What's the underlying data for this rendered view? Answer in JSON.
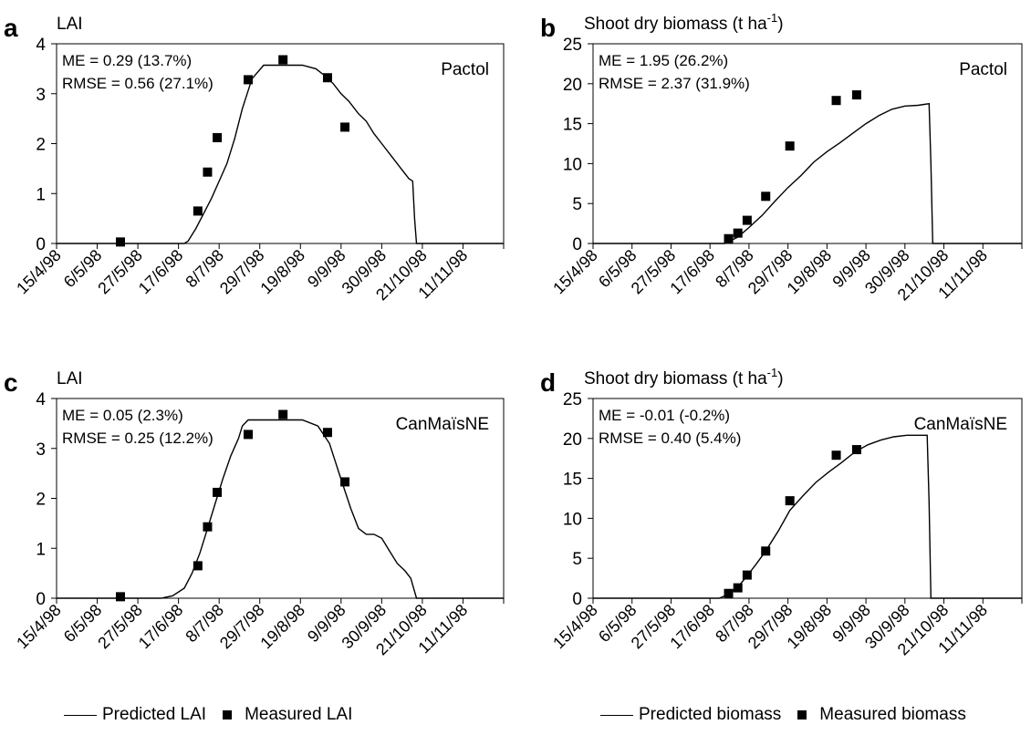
{
  "chart_data": [
    {
      "panel": "a",
      "type": "line",
      "title": "LAI",
      "model": "Pactol",
      "stats": [
        "ME = 0.29 (13.7%)",
        "RMSE = 0.56 (27.1%)"
      ],
      "ylim": [
        0,
        4
      ],
      "yticks": [
        0,
        1,
        2,
        3,
        4
      ],
      "xlim": [
        "1998-04-15",
        "1998-12-02"
      ],
      "xtick_labels": [
        "15/4/98",
        "6/5/98",
        "27/5/98",
        "17/6/98",
        "8/7/98",
        "29/7/98",
        "19/8/98",
        "9/9/98",
        "30/9/98",
        "21/10/98",
        "11/11/98"
      ],
      "series": [
        {
          "name": "Predicted LAI",
          "kind": "line",
          "x": [
            "1998-04-15",
            "1998-06-20",
            "1998-06-22",
            "1998-06-26",
            "1998-06-30",
            "1998-07-04",
            "1998-07-08",
            "1998-07-12",
            "1998-07-16",
            "1998-07-20",
            "1998-07-25",
            "1998-07-31",
            "1998-08-20",
            "1998-08-27",
            "1998-09-01",
            "1998-09-05",
            "1998-09-09",
            "1998-09-13",
            "1998-09-18",
            "1998-09-22",
            "1998-09-26",
            "1998-09-30",
            "1998-10-05",
            "1998-10-10",
            "1998-10-14",
            "1998-10-16",
            "1998-10-17",
            "1998-10-18",
            "1998-12-02"
          ],
          "y": [
            0,
            0,
            0.05,
            0.3,
            0.6,
            0.9,
            1.25,
            1.6,
            2.1,
            2.7,
            3.3,
            3.57,
            3.57,
            3.5,
            3.35,
            3.2,
            3.0,
            2.85,
            2.6,
            2.45,
            2.2,
            2.0,
            1.75,
            1.5,
            1.3,
            1.25,
            0.5,
            0,
            0
          ]
        },
        {
          "name": "Measured LAI",
          "kind": "scatter",
          "x": [
            "1998-05-18",
            "1998-06-27",
            "1998-07-02",
            "1998-07-07",
            "1998-07-23",
            "1998-08-10",
            "1998-09-02",
            "1998-09-11"
          ],
          "y": [
            0.03,
            0.65,
            1.43,
            2.12,
            3.28,
            3.68,
            3.32,
            2.33
          ]
        }
      ]
    },
    {
      "panel": "b",
      "type": "line",
      "title": "Shoot dry biomass (t ha",
      "title_sup": "-1",
      "title_end": ")",
      "model": "Pactol",
      "stats": [
        "ME = 1.95 (26.2%)",
        "RMSE = 2.37 (31.9%)"
      ],
      "ylim": [
        0,
        25
      ],
      "yticks": [
        0,
        5,
        10,
        15,
        20,
        25
      ],
      "xlim": [
        "1998-04-15",
        "1998-12-02"
      ],
      "xtick_labels": [
        "15/4/98",
        "6/5/98",
        "27/5/98",
        "17/6/98",
        "8/7/98",
        "29/7/98",
        "19/8/98",
        "9/9/98",
        "30/9/98",
        "21/10/98",
        "11/11/98"
      ],
      "series": [
        {
          "name": "Predicted biomass",
          "kind": "line",
          "x": [
            "1998-04-15",
            "1998-06-25",
            "1998-07-02",
            "1998-07-08",
            "1998-07-15",
            "1998-07-22",
            "1998-07-29",
            "1998-08-05",
            "1998-08-12",
            "1998-08-19",
            "1998-08-26",
            "1998-09-02",
            "1998-09-09",
            "1998-09-16",
            "1998-09-23",
            "1998-09-30",
            "1998-10-07",
            "1998-10-13",
            "1998-10-14",
            "1998-10-15",
            "1998-12-02"
          ],
          "y": [
            0,
            0,
            0.8,
            2.0,
            3.5,
            5.3,
            7.0,
            8.5,
            10.2,
            11.5,
            12.6,
            13.8,
            15.0,
            16.0,
            16.8,
            17.2,
            17.3,
            17.5,
            10,
            0,
            0
          ]
        },
        {
          "name": "Measured biomass",
          "kind": "scatter",
          "x": [
            "1998-06-27",
            "1998-07-02",
            "1998-07-07",
            "1998-07-17",
            "1998-07-30",
            "1998-08-24",
            "1998-09-04"
          ],
          "y": [
            0.6,
            1.3,
            2.9,
            5.9,
            12.2,
            17.9,
            18.6
          ]
        }
      ]
    },
    {
      "panel": "c",
      "type": "line",
      "title": "LAI",
      "model": "CanMaïsNE",
      "stats": [
        "ME = 0.05 (2.3%)",
        "RMSE = 0.25 (12.2%)"
      ],
      "ylim": [
        0,
        4
      ],
      "yticks": [
        0,
        1,
        2,
        3,
        4
      ],
      "xlim": [
        "1998-04-15",
        "1998-12-02"
      ],
      "xtick_labels": [
        "15/4/98",
        "6/5/98",
        "27/5/98",
        "17/6/98",
        "8/7/98",
        "29/7/98",
        "19/8/98",
        "9/9/98",
        "30/9/98",
        "21/10/98",
        "11/11/98"
      ],
      "series": [
        {
          "name": "Predicted LAI",
          "kind": "line",
          "x": [
            "1998-04-15",
            "1998-06-08",
            "1998-06-14",
            "1998-06-20",
            "1998-06-24",
            "1998-06-28",
            "1998-07-02",
            "1998-07-06",
            "1998-07-10",
            "1998-07-14",
            "1998-07-18",
            "1998-07-20",
            "1998-07-23",
            "1998-08-20",
            "1998-08-28",
            "1998-09-03",
            "1998-09-08",
            "1998-09-14",
            "1998-09-18",
            "1998-09-22",
            "1998-09-26",
            "1998-09-30",
            "1998-10-04",
            "1998-10-08",
            "1998-10-12",
            "1998-10-15",
            "1998-10-18",
            "1998-12-02"
          ],
          "y": [
            0,
            0,
            0.05,
            0.2,
            0.5,
            0.9,
            1.4,
            1.9,
            2.4,
            2.85,
            3.2,
            3.45,
            3.57,
            3.57,
            3.45,
            3.1,
            2.5,
            1.8,
            1.4,
            1.28,
            1.28,
            1.2,
            0.95,
            0.7,
            0.55,
            0.4,
            0,
            0
          ]
        },
        {
          "name": "Measured LAI",
          "kind": "scatter",
          "x": [
            "1998-05-18",
            "1998-06-27",
            "1998-07-02",
            "1998-07-07",
            "1998-07-23",
            "1998-08-10",
            "1998-09-02",
            "1998-09-11"
          ],
          "y": [
            0.03,
            0.65,
            1.43,
            2.12,
            3.28,
            3.68,
            3.32,
            2.33
          ]
        }
      ]
    },
    {
      "panel": "d",
      "type": "line",
      "title": "Shoot dry biomass (t ha",
      "title_sup": "-1",
      "title_end": ")",
      "model": "CanMaïsNE",
      "stats": [
        "ME = -0.01 (-0.2%)",
        "RMSE = 0.40 (5.4%)"
      ],
      "ylim": [
        0,
        25
      ],
      "yticks": [
        0,
        5,
        10,
        15,
        20,
        25
      ],
      "xlim": [
        "1998-04-15",
        "1998-12-02"
      ],
      "xtick_labels": [
        "15/4/98",
        "6/5/98",
        "27/5/98",
        "17/6/98",
        "8/7/98",
        "29/7/98",
        "19/8/98",
        "9/9/98",
        "30/9/98",
        "21/10/98",
        "11/11/98"
      ],
      "series": [
        {
          "name": "Predicted biomass",
          "kind": "line",
          "x": [
            "1998-04-15",
            "1998-06-22",
            "1998-06-27",
            "1998-07-02",
            "1998-07-07",
            "1998-07-12",
            "1998-07-17",
            "1998-07-24",
            "1998-07-30",
            "1998-08-06",
            "1998-08-13",
            "1998-08-20",
            "1998-08-27",
            "1998-09-03",
            "1998-09-10",
            "1998-09-17",
            "1998-09-24",
            "1998-10-01",
            "1998-10-08",
            "1998-10-12",
            "1998-10-13",
            "1998-10-14",
            "1998-12-02"
          ],
          "y": [
            0,
            0,
            0.5,
            1.4,
            2.8,
            4.3,
            5.9,
            8.5,
            11.0,
            12.8,
            14.5,
            15.8,
            17.0,
            18.3,
            19.2,
            19.8,
            20.2,
            20.4,
            20.4,
            20.4,
            12,
            0,
            0
          ]
        },
        {
          "name": "Measured biomass",
          "kind": "scatter",
          "x": [
            "1998-06-27",
            "1998-07-02",
            "1998-07-07",
            "1998-07-17",
            "1998-07-30",
            "1998-08-24",
            "1998-09-04"
          ],
          "y": [
            0.6,
            1.3,
            2.9,
            5.9,
            12.2,
            17.9,
            18.6
          ]
        }
      ]
    }
  ],
  "legend": {
    "left": {
      "line_label": "Predicted LAI",
      "marker_label": "Measured LAI"
    },
    "right": {
      "line_label": "Predicted biomass",
      "marker_label": "Measured biomass"
    }
  }
}
